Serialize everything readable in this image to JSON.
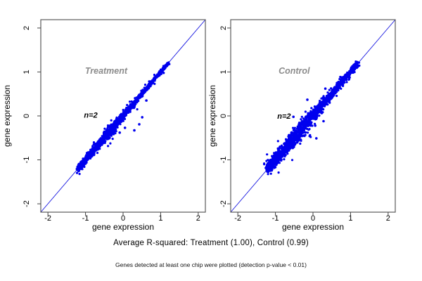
{
  "page": {
    "background": "#ffffff"
  },
  "style": {
    "frame_color": "#5a5a5a",
    "tick_color": "#444444",
    "text_color": "#000000",
    "panel_title_color": "#8c8c8c",
    "annotation_color": "#000000",
    "point_color": "#0000ee",
    "line_color": "#1515e0"
  },
  "caption": {
    "text": "Average R-squared: Treatment (1.00), Control (0.99)"
  },
  "footnote": {
    "text": "Genes detected at least one chip were plotted (detection p-value < 0.01)"
  },
  "chart_data": [
    {
      "type": "scatter",
      "title": "Treatment",
      "r_squared": "1.00",
      "xlabel": "gene expression",
      "ylabel": "gene expression",
      "xlim": [
        -2.19,
        2.19
      ],
      "ylim": [
        -2.19,
        2.19
      ],
      "x_ticks": [
        "-2",
        "-1",
        "0",
        "1",
        "2"
      ],
      "y_ticks": [
        "-2",
        "-1",
        "0",
        "1",
        "2"
      ],
      "grid": false,
      "identity_line": true,
      "title_pos": {
        "x": -0.45,
        "y": 1.02
      },
      "annotation": {
        "text": "n=2",
        "x": -0.86,
        "y": 0.02
      },
      "point_radius": 1.6,
      "cluster": {
        "n": 1500,
        "t_min": -1.2,
        "t_max": 1.2,
        "density_exp": 1.5,
        "core_sd": 0.038,
        "taper_center": -0.35,
        "taper_width": 0.45,
        "fuzz_n": 130,
        "fuzz_sd_mult": 2.3,
        "seed": 42
      },
      "outliers": [
        [
          0.51,
          -0.03
        ],
        [
          0.43,
          -0.19
        ],
        [
          0.3,
          -0.33
        ],
        [
          -0.09,
          -0.38
        ],
        [
          0.05,
          -0.27
        ],
        [
          0.62,
          0.35
        ]
      ]
    },
    {
      "type": "scatter",
      "title": "Control",
      "r_squared": "0.99",
      "xlabel": "gene expression",
      "ylabel": "gene expression",
      "xlim": [
        -2.19,
        2.19
      ],
      "ylim": [
        -2.19,
        2.19
      ],
      "x_ticks": [
        "-2",
        "-1",
        "0",
        "1",
        "2"
      ],
      "y_ticks": [
        "-2",
        "-1",
        "0",
        "1",
        "2"
      ],
      "grid": false,
      "identity_line": true,
      "title_pos": {
        "x": -0.5,
        "y": 1.02
      },
      "annotation": {
        "text": "n=2",
        "x": -0.77,
        "y": 0.0
      },
      "point_radius": 1.6,
      "cluster": {
        "n": 1500,
        "t_min": -1.2,
        "t_max": 1.2,
        "density_exp": 1.5,
        "core_sd": 0.07,
        "taper_center": -0.35,
        "taper_width": 0.45,
        "fuzz_n": 150,
        "fuzz_sd_mult": 2.0,
        "seed": 99
      },
      "outliers": [
        [
          -0.52,
          -0.02
        ],
        [
          0.09,
          -0.51
        ],
        [
          0.06,
          -0.22
        ],
        [
          -0.15,
          0.37
        ],
        [
          0.28,
          -0.12
        ],
        [
          0.33,
          0.62
        ],
        [
          -0.3,
          -0.45
        ]
      ]
    }
  ]
}
